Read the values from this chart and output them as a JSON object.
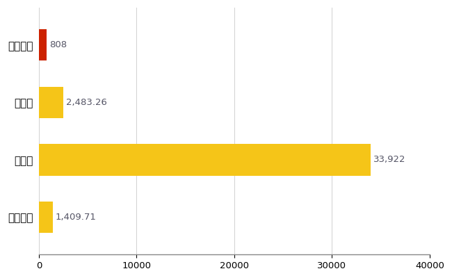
{
  "categories": [
    "阿久比町",
    "県平均",
    "県最大",
    "全国平均"
  ],
  "values": [
    808,
    2483.26,
    33922,
    1409.71
  ],
  "bar_colors": [
    "#cc2200",
    "#f5c518",
    "#f5c518",
    "#f5c518"
  ],
  "labels": [
    "808",
    "2,483.26",
    "33,922",
    "1,409.71"
  ],
  "xlim": [
    0,
    40000
  ],
  "xticks": [
    0,
    10000,
    20000,
    30000,
    40000
  ],
  "xtick_labels": [
    "0",
    "10000",
    "20000",
    "30000",
    "40000"
  ],
  "bar_height": 0.55,
  "grid_color": "#cccccc",
  "background_color": "#ffffff",
  "label_fontsize": 9.5,
  "tick_fontsize": 9.5,
  "ytick_fontsize": 11,
  "label_color": "#555566"
}
